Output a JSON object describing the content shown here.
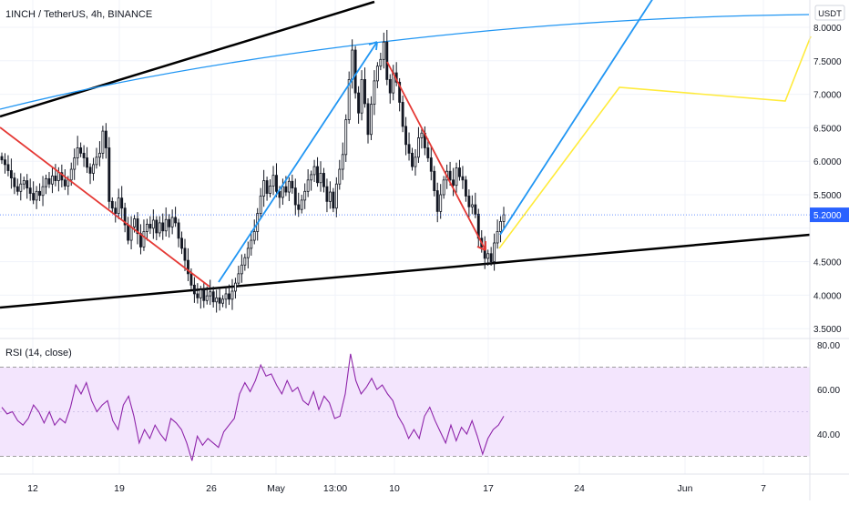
{
  "header": {
    "symbol_title": "1INCH / TetherUS, 4h, BINANCE",
    "currency": "USDT"
  },
  "rsi_panel": {
    "label": "RSI (14, close)"
  },
  "colors": {
    "background": "#ffffff",
    "candle": "#131722",
    "trend_black": "#000000",
    "red_line": "#e53935",
    "blue_line": "#2196f3",
    "yellow_line": "#ffeb3b",
    "rsi_line": "#8e24aa",
    "rsi_band_fill": "#f3e5fd",
    "price_badge": "#2962ff",
    "axis_text": "#131722",
    "grid": "#f0f3fa"
  },
  "chart_data": [
    {
      "type": "candlestick",
      "title": "1INCH / TetherUS, 4h, BINANCE",
      "ylabel": "USDT",
      "y_ticks": [
        3.5,
        4.0,
        4.5,
        5.0,
        5.5,
        6.0,
        6.5,
        7.0,
        7.5,
        8.0
      ],
      "y_tick_labels": [
        "3.5000",
        "4.0000",
        "4.5000",
        "5.0000",
        "5.5000",
        "6.0000",
        "6.5000",
        "7.0000",
        "7.5000",
        "8.0000"
      ],
      "ylim": [
        3.4,
        8.25
      ],
      "x_tick_labels": [
        "12",
        "19",
        "26",
        "May",
        "13:00",
        "10",
        "17",
        "24",
        "Jun",
        "7"
      ],
      "current_price": 5.2,
      "current_price_label": "5.2000",
      "close_series": [
        6.02,
        5.95,
        5.86,
        5.75,
        5.62,
        5.55,
        5.66,
        5.71,
        5.6,
        5.52,
        5.42,
        5.55,
        5.49,
        5.62,
        5.74,
        5.66,
        5.78,
        5.71,
        5.83,
        5.72,
        5.63,
        5.72,
        5.88,
        6.05,
        6.2,
        6.12,
        6.05,
        5.91,
        5.82,
        5.95,
        6.06,
        6.12,
        6.45,
        6.2,
        5.4,
        5.3,
        5.22,
        5.45,
        5.3,
        5.05,
        4.82,
        5.02,
        5.14,
        4.92,
        4.72,
        4.95,
        5.06,
        5.0,
        5.12,
        4.93,
        5.08,
        4.96,
        5.13,
        5.02,
        5.16,
        5.08,
        4.85,
        4.7,
        4.52,
        4.32,
        4.15,
        4.02,
        3.96,
        4.08,
        3.92,
        3.99,
        4.05,
        3.9,
        3.96,
        3.88,
        3.94,
        4.02,
        3.94,
        4.06,
        4.18,
        4.32,
        4.45,
        4.56,
        4.7,
        4.82,
        4.95,
        5.22,
        5.48,
        5.71,
        5.52,
        5.63,
        5.79,
        5.55,
        5.46,
        5.62,
        5.54,
        5.7,
        5.6,
        5.35,
        5.28,
        5.42,
        5.55,
        5.72,
        5.8,
        5.92,
        5.68,
        5.82,
        5.62,
        5.4,
        5.54,
        5.3,
        5.66,
        5.88,
        6.1,
        6.62,
        7.22,
        7.66,
        7.02,
        6.72,
        7.22,
        6.86,
        6.4,
        6.85,
        7.2,
        7.42,
        7.52,
        7.78,
        7.22,
        7.02,
        7.32,
        7.18,
        6.88,
        6.52,
        6.25,
        6.12,
        5.92,
        6.06,
        6.35,
        6.42,
        6.2,
        6.05,
        5.85,
        5.56,
        5.25,
        5.5,
        5.72,
        5.85,
        5.72,
        5.64,
        5.9,
        5.77,
        5.72,
        5.48,
        5.32,
        5.35,
        5.21,
        4.85,
        4.72,
        4.55,
        4.62,
        4.5,
        4.78,
        4.95,
        5.1,
        5.2
      ],
      "rsi_series": [
        52,
        49,
        50,
        46,
        44,
        47,
        53,
        50,
        45,
        50,
        44,
        47,
        45,
        52,
        62,
        58,
        63,
        55,
        50,
        53,
        55,
        46,
        42,
        53,
        57,
        48,
        36,
        42,
        38,
        44,
        40,
        37,
        47,
        45,
        42,
        36,
        28,
        39,
        35,
        38,
        36,
        34,
        41,
        44,
        47,
        58,
        63,
        59,
        64,
        71,
        66,
        67,
        62,
        58,
        64,
        59,
        61,
        55,
        53,
        59,
        51,
        57,
        54,
        47,
        48,
        58,
        76,
        64,
        58,
        61,
        65,
        60,
        62,
        58,
        55,
        48,
        44,
        38,
        42,
        38,
        48,
        52,
        46,
        41,
        36,
        44,
        37,
        43,
        40,
        46,
        39,
        31,
        38,
        42,
        44,
        48
      ],
      "rsi_ticks": [
        40,
        60,
        80
      ],
      "rsi_tick_labels": [
        "40.00",
        "60.00",
        "80.00"
      ],
      "rsi_band": [
        30,
        70
      ],
      "rsi_ylim": [
        27,
        82
      ]
    }
  ]
}
